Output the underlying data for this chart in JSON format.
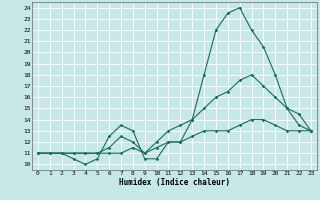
{
  "xlabel": "Humidex (Indice chaleur)",
  "bg_color": "#c8e8e8",
  "line_color": "#1a6b5a",
  "grid_color": "#ffffff",
  "xlim": [
    -0.5,
    23.5
  ],
  "ylim": [
    9.5,
    24.5
  ],
  "xticks": [
    0,
    1,
    2,
    3,
    4,
    5,
    6,
    7,
    8,
    9,
    10,
    11,
    12,
    13,
    14,
    15,
    16,
    17,
    18,
    19,
    20,
    21,
    22,
    23
  ],
  "yticks": [
    10,
    11,
    12,
    13,
    14,
    15,
    16,
    17,
    18,
    19,
    20,
    21,
    22,
    23,
    24
  ],
  "line1_x": [
    0,
    1,
    2,
    3,
    4,
    5,
    6,
    7,
    8,
    9,
    10,
    11,
    12,
    13,
    14,
    15,
    16,
    17,
    18,
    19,
    20,
    21,
    22,
    23
  ],
  "line1_y": [
    11,
    11,
    11,
    10.5,
    10,
    10.5,
    12.5,
    13.5,
    13,
    10.5,
    10.5,
    12,
    12,
    14,
    18,
    22,
    23.5,
    24,
    22,
    20.5,
    18,
    15,
    14.5,
    13
  ],
  "line2_x": [
    0,
    1,
    2,
    3,
    4,
    5,
    6,
    7,
    8,
    9,
    10,
    11,
    12,
    13,
    14,
    15,
    16,
    17,
    18,
    19,
    20,
    21,
    22,
    23
  ],
  "line2_y": [
    11,
    11,
    11,
    11,
    11,
    11,
    11.5,
    12.5,
    12,
    11,
    12,
    13,
    13.5,
    14,
    15,
    16,
    16.5,
    17.5,
    18,
    17,
    16,
    15,
    13.5,
    13
  ],
  "line3_x": [
    0,
    1,
    2,
    3,
    4,
    5,
    6,
    7,
    8,
    9,
    10,
    11,
    12,
    13,
    14,
    15,
    16,
    17,
    18,
    19,
    20,
    21,
    22,
    23
  ],
  "line3_y": [
    11,
    11,
    11,
    11,
    11,
    11,
    11,
    11,
    11.5,
    11,
    11.5,
    12,
    12,
    12.5,
    13,
    13,
    13,
    13.5,
    14,
    14,
    13.5,
    13,
    13,
    13
  ]
}
